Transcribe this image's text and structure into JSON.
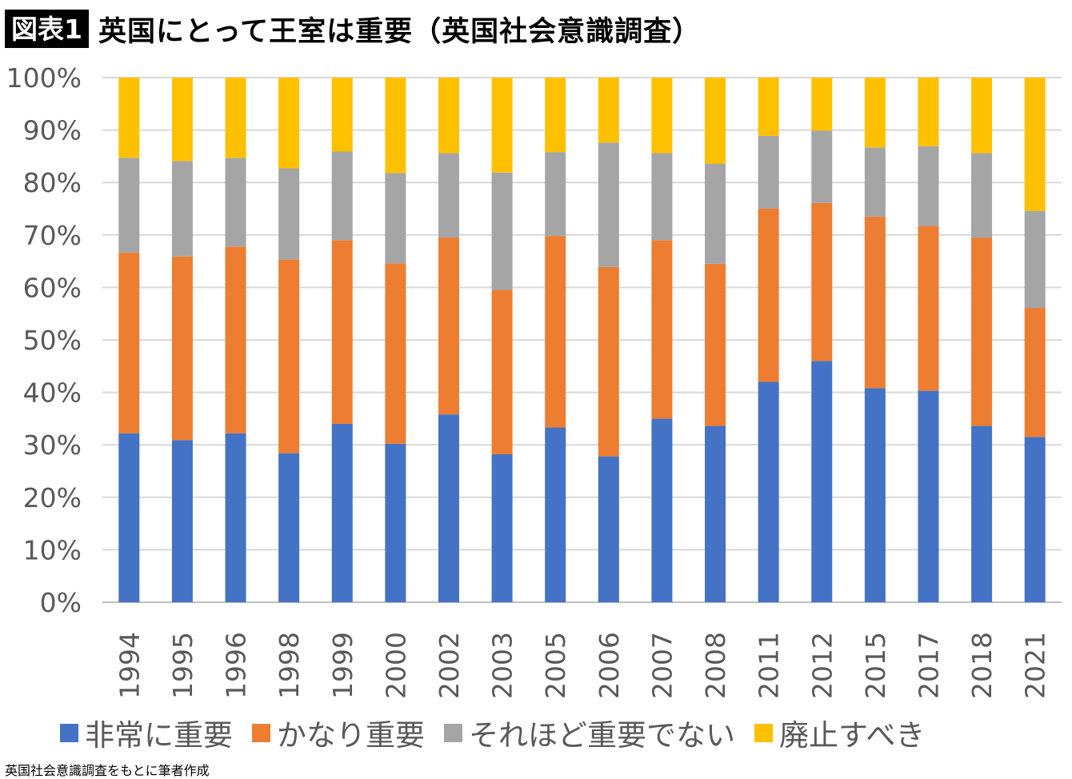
{
  "header": {
    "figure_label": "図表1",
    "title": "英国にとって王室は重要（英国社会意識調査）"
  },
  "chart_data": {
    "type": "bar",
    "stacked": true,
    "percent_stacked": true,
    "title": "英国にとって王室は重要（英国社会意識調査）",
    "xlabel": "",
    "ylabel": "",
    "ylim": [
      0,
      100
    ],
    "y_ticks": [
      "0%",
      "10%",
      "20%",
      "30%",
      "40%",
      "50%",
      "60%",
      "70%",
      "80%",
      "90%",
      "100%"
    ],
    "grid": true,
    "legend_position": "bottom",
    "categories": [
      "1994",
      "1995",
      "1996",
      "1998",
      "1999",
      "2000",
      "2002",
      "2003",
      "2005",
      "2006",
      "2007",
      "2008",
      "2011",
      "2012",
      "2015",
      "2017",
      "2018",
      "2021"
    ],
    "series": [
      {
        "name": "非常に重要",
        "color": "#4472C4",
        "values": [
          32.2,
          30.9,
          32.2,
          28.4,
          34.0,
          30.2,
          35.8,
          28.2,
          33.3,
          27.8,
          35.0,
          33.6,
          42.0,
          46.0,
          40.8,
          40.3,
          33.6,
          31.5
        ]
      },
      {
        "name": "かなり重要",
        "color": "#ED7D31",
        "values": [
          34.4,
          35.0,
          35.6,
          36.9,
          35.0,
          34.4,
          33.7,
          31.3,
          36.5,
          36.1,
          34.0,
          30.9,
          33.0,
          30.1,
          32.7,
          31.4,
          35.9,
          24.6
        ]
      },
      {
        "name": "それほど重要でない",
        "color": "#A5A5A5",
        "values": [
          18.1,
          18.2,
          16.9,
          17.4,
          16.9,
          17.2,
          16.1,
          22.4,
          16.0,
          23.7,
          16.6,
          19.1,
          13.9,
          13.8,
          13.2,
          15.2,
          16.1,
          18.5
        ]
      },
      {
        "name": "廃止すべき",
        "color": "#FFC000",
        "values": [
          15.3,
          15.9,
          15.3,
          17.3,
          14.1,
          18.2,
          14.4,
          18.1,
          14.2,
          12.4,
          14.4,
          16.4,
          11.1,
          10.1,
          13.3,
          13.1,
          14.4,
          25.4
        ]
      }
    ]
  },
  "footer": {
    "source": "英国社会意識調査をもとに筆者作成"
  }
}
